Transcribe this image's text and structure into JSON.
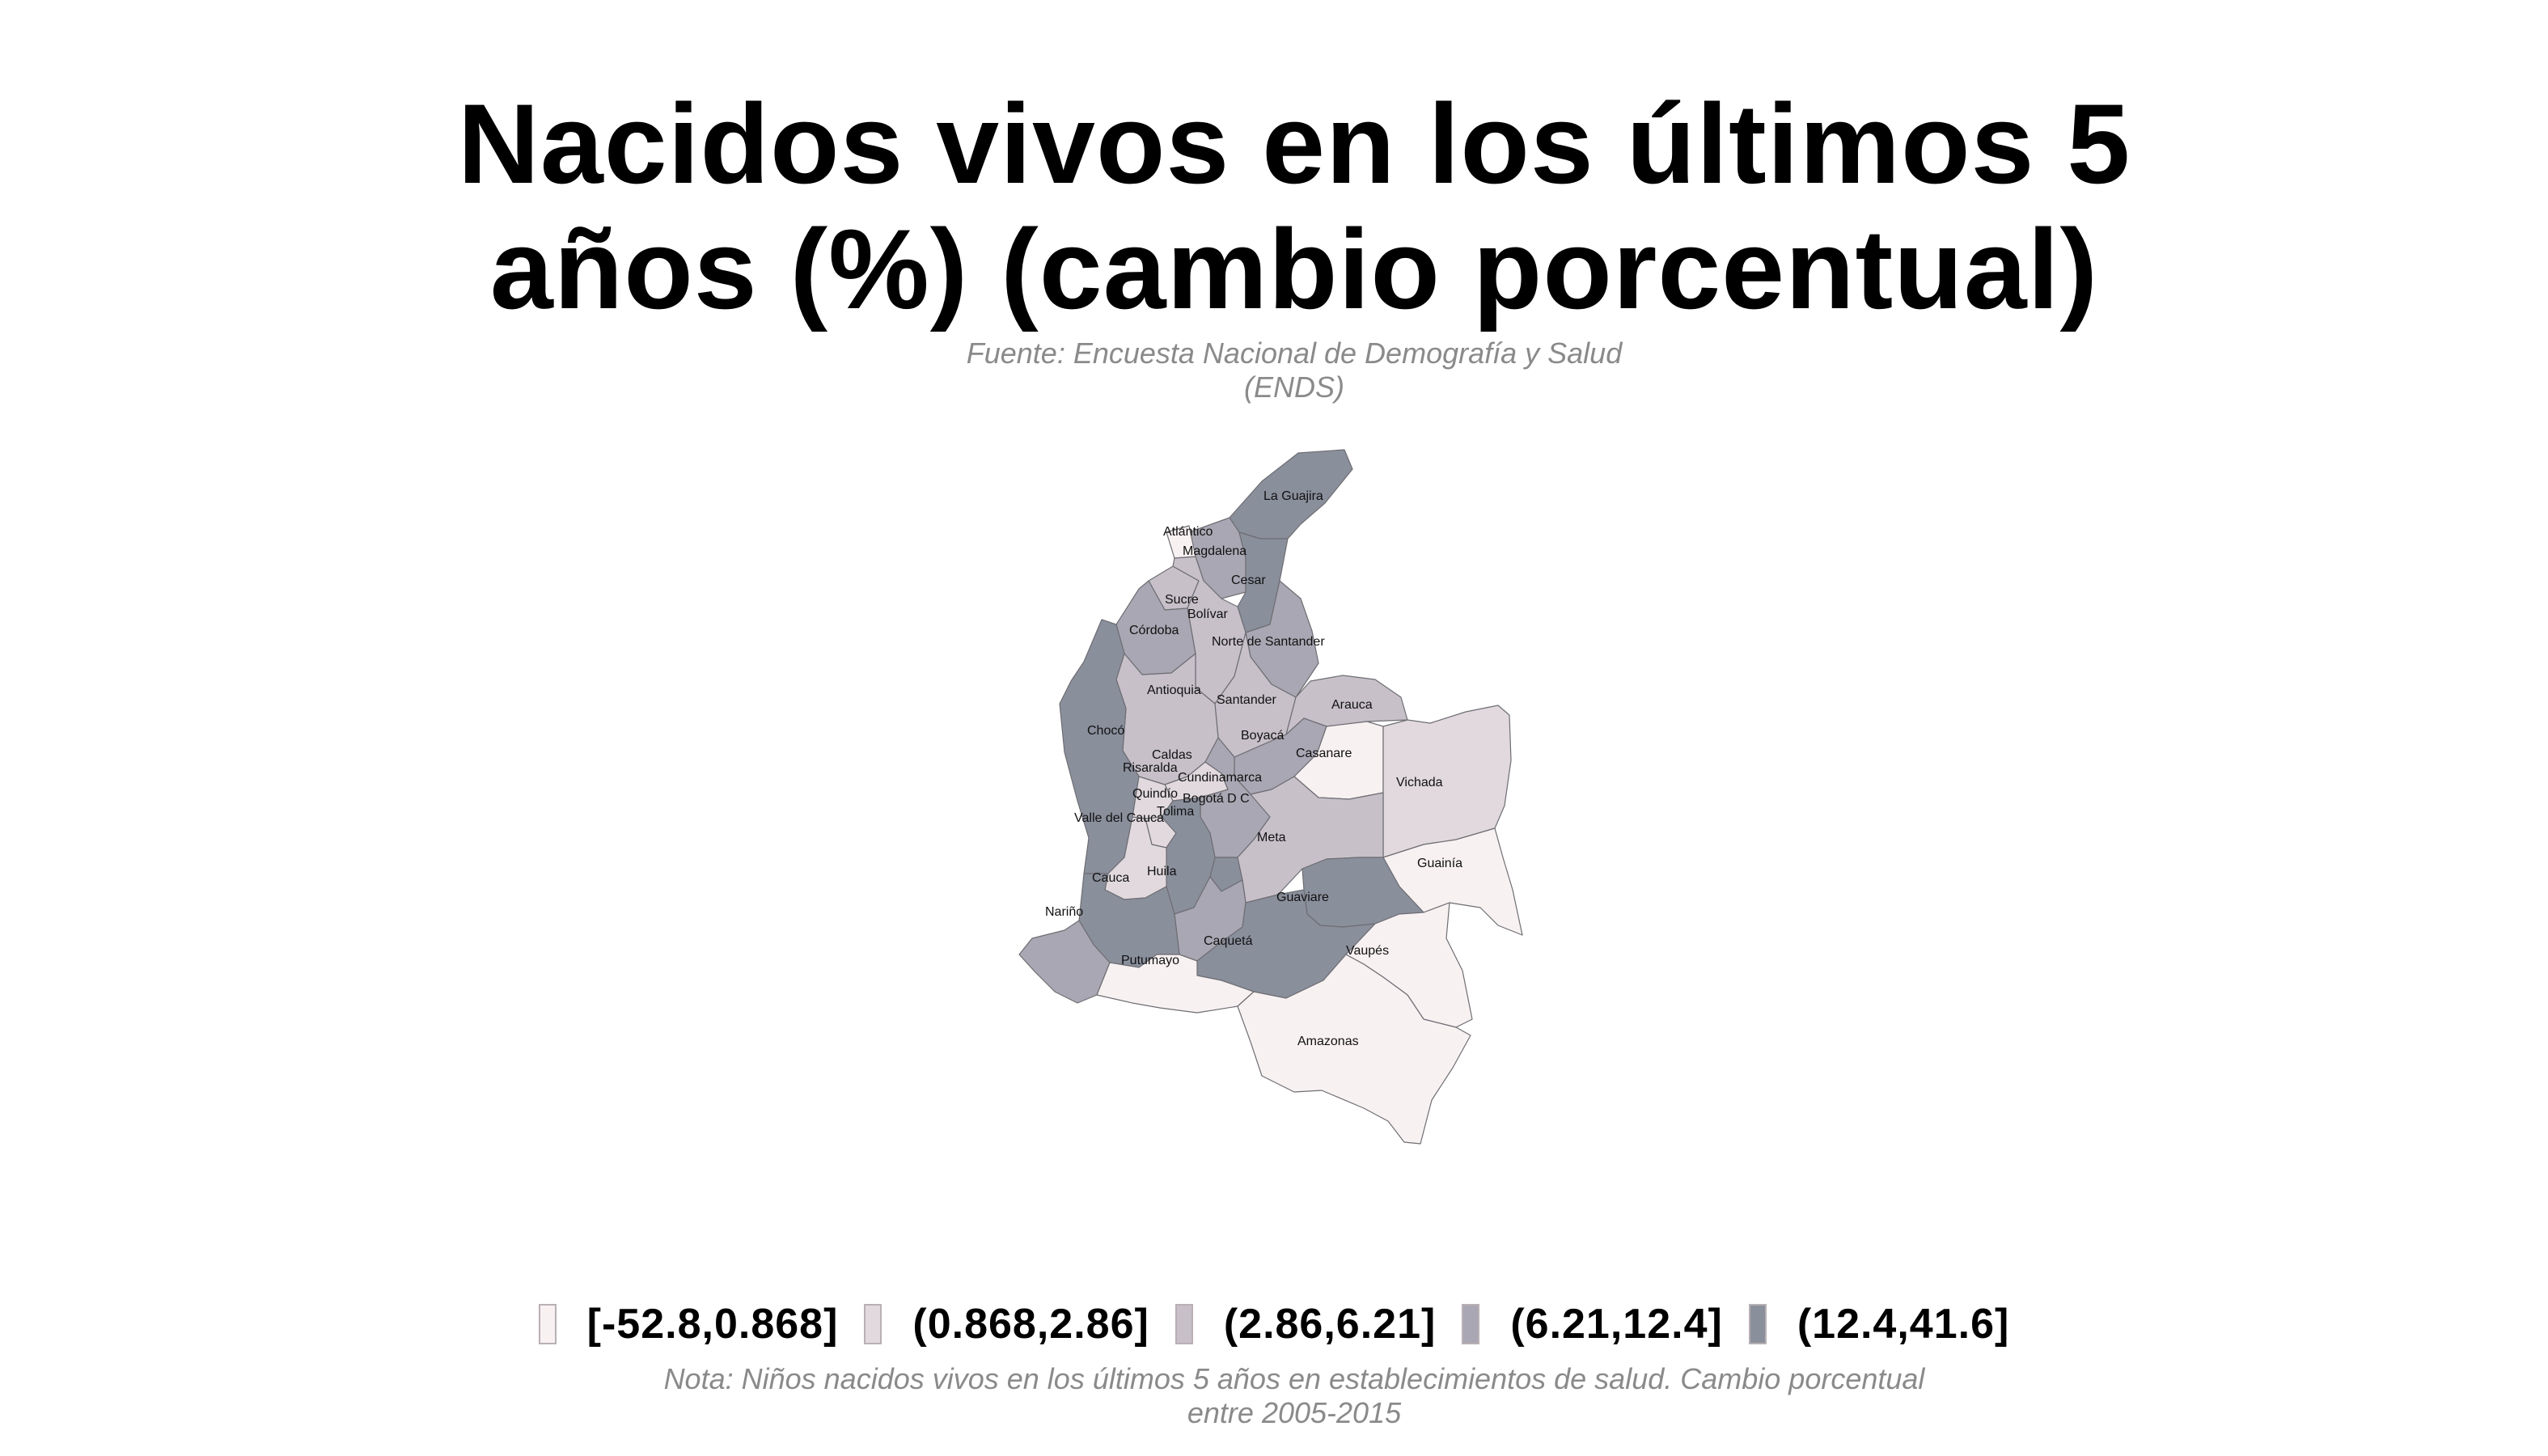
{
  "title": "Nacidos vivos en los últimos 5\naños (%) (cambio porcentual)",
  "source": "Fuente: Encuesta Nacional de Demografía y Salud\n(ENDS)",
  "note": "Nota: Niños nacidos vivos en los últimos 5 años en establecimientos de salud. Cambio porcentual\nentre 2005-2015",
  "legend": [
    {
      "label": "[-52.8,0.868]",
      "color": "#f8f1f2"
    },
    {
      "label": "(0.868,2.86]",
      "color": "#e1d9de"
    },
    {
      "label": "(2.86,6.21]",
      "color": "#c7c0c9"
    },
    {
      "label": "(6.21,12.4]",
      "color": "#a9a7b3"
    },
    {
      "label": "(12.4,41.6]",
      "color": "#8a8f9c"
    }
  ],
  "map_data": {
    "regions": [
      {
        "name": "La Guajira",
        "class": 4
      },
      {
        "name": "Atlántico",
        "class": 0
      },
      {
        "name": "Magdalena",
        "class": 3
      },
      {
        "name": "Cesar",
        "class": 4
      },
      {
        "name": "Sucre",
        "class": 2
      },
      {
        "name": "Bolívar",
        "class": 2
      },
      {
        "name": "Córdoba",
        "class": 3
      },
      {
        "name": "Norte de Santander",
        "class": 3
      },
      {
        "name": "Antioquia",
        "class": 2
      },
      {
        "name": "Santander",
        "class": 2
      },
      {
        "name": "Arauca",
        "class": 2
      },
      {
        "name": "Chocó",
        "class": 4
      },
      {
        "name": "Caldas",
        "class": 1
      },
      {
        "name": "Boyacá",
        "class": 3
      },
      {
        "name": "Casanare",
        "class": 0
      },
      {
        "name": "Risaralda",
        "class": 1
      },
      {
        "name": "Cundinamarca",
        "class": 3
      },
      {
        "name": "Vichada",
        "class": 1
      },
      {
        "name": "Quindío",
        "class": 1
      },
      {
        "name": "Bogotá D C",
        "class": 4
      },
      {
        "name": "Tolima",
        "class": 4
      },
      {
        "name": "Valle del Cauca",
        "class": 1
      },
      {
        "name": "Meta",
        "class": 2
      },
      {
        "name": "Guainía",
        "class": 0
      },
      {
        "name": "Cauca",
        "class": 4
      },
      {
        "name": "Huila",
        "class": 3
      },
      {
        "name": "Guaviare",
        "class": 4
      },
      {
        "name": "Nariño",
        "class": 3
      },
      {
        "name": "Caquetá",
        "class": 4
      },
      {
        "name": "Vaupés",
        "class": 0
      },
      {
        "name": "Putumayo",
        "class": 0
      },
      {
        "name": "Amazonas",
        "class": 0
      }
    ]
  }
}
